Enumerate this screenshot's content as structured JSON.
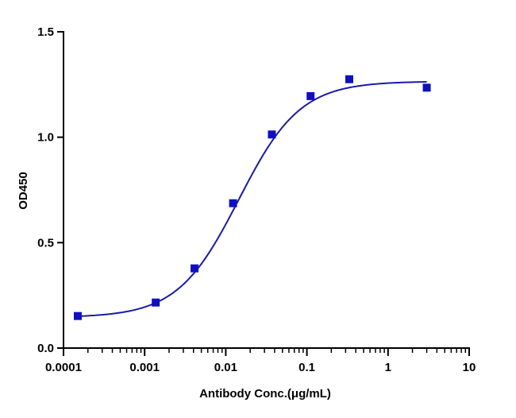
{
  "chart_data": {
    "type": "scatter",
    "title": "",
    "xlabel": "Antibody Conc.(μg/mL)",
    "ylabel": "OD450",
    "x_scale": "log",
    "xlim": [
      0.0001,
      10
    ],
    "ylim": [
      0.0,
      1.5
    ],
    "x_ticks": [
      {
        "value": 0.0001,
        "label": "0.0001"
      },
      {
        "value": 0.001,
        "label": "0.001"
      },
      {
        "value": 0.01,
        "label": "0.01"
      },
      {
        "value": 0.1,
        "label": "0.1"
      },
      {
        "value": 1,
        "label": "1"
      },
      {
        "value": 10,
        "label": "10"
      }
    ],
    "y_ticks": [
      {
        "value": 0.0,
        "label": "0.0"
      },
      {
        "value": 0.5,
        "label": "0.5"
      },
      {
        "value": 1.0,
        "label": "1.0"
      },
      {
        "value": 1.5,
        "label": "1.5"
      }
    ],
    "grid": false,
    "legend": "none",
    "series": [
      {
        "marker": "square",
        "color": "#1010c0",
        "points": [
          {
            "x": 0.00015,
            "y": 0.152
          },
          {
            "x": 0.00137,
            "y": 0.216
          },
          {
            "x": 0.00412,
            "y": 0.378
          },
          {
            "x": 0.0123,
            "y": 0.687
          },
          {
            "x": 0.037,
            "y": 1.013
          },
          {
            "x": 0.111,
            "y": 1.195
          },
          {
            "x": 0.333,
            "y": 1.275
          },
          {
            "x": 3.0,
            "y": 1.235
          }
        ],
        "fit": {
          "model": "4PL",
          "bottom": 0.145,
          "top": 1.265,
          "ec50": 0.0145,
          "hill": 1.15,
          "line_color": "#1a1aa8"
        }
      }
    ]
  }
}
